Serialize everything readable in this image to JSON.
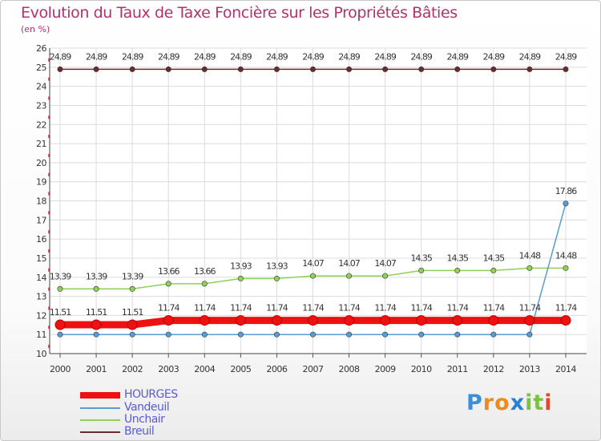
{
  "title": "Evolution du Taux de Taxe Foncière sur les Propriétés Bâties",
  "subtitle": "(en %)",
  "chart_data": {
    "type": "line",
    "title": "Evolution du Taux de Taxe Foncière sur les Propriétés Bâties",
    "ylabel": "(en %)",
    "xlabel": "",
    "ylim": [
      10,
      26
    ],
    "yticks": [
      "10",
      "11",
      "12",
      "13",
      "14",
      "15",
      "16",
      "17",
      "18",
      "19",
      "20",
      "21",
      "22",
      "23",
      "24",
      "25",
      "26"
    ],
    "categories": [
      "2000",
      "2001",
      "2002",
      "2003",
      "2004",
      "2005",
      "2006",
      "2007",
      "2008",
      "2009",
      "2010",
      "2011",
      "2012",
      "2013",
      "2014"
    ],
    "series": [
      {
        "name": "Breuil",
        "color": "#6b2a2e",
        "values": [
          24.89,
          24.89,
          24.89,
          24.89,
          24.89,
          24.89,
          24.89,
          24.89,
          24.89,
          24.89,
          24.89,
          24.89,
          24.89,
          24.89,
          24.89
        ],
        "labels": [
          "24.89",
          "24.89",
          "24.89",
          "24.89",
          "24.89",
          "24.89",
          "24.89",
          "24.89",
          "24.89",
          "24.89",
          "24.89",
          "24.89",
          "24.89",
          "24.89",
          "24.89"
        ]
      },
      {
        "name": "Unchair",
        "color": "#8fd058",
        "values": [
          13.39,
          13.39,
          13.39,
          13.66,
          13.66,
          13.93,
          13.93,
          14.07,
          14.07,
          14.07,
          14.35,
          14.35,
          14.35,
          14.48,
          14.48
        ],
        "labels": [
          "13.39",
          "13.39",
          "13.39",
          "13.66",
          "13.66",
          "13.93",
          "13.93",
          "14.07",
          "14.07",
          "14.07",
          "14.35",
          "14.35",
          "14.35",
          "14.48",
          "14.48"
        ]
      },
      {
        "name": "Vandeuil",
        "color": "#5b9bd0",
        "values": [
          11,
          11,
          11,
          11,
          11,
          11,
          11,
          11,
          11,
          11,
          11,
          11,
          11,
          11,
          17.86
        ],
        "labels": [
          "",
          "",
          "",
          "",
          "",
          "",
          "",
          "",
          "",
          "",
          "",
          "",
          "",
          "",
          "17.86"
        ]
      },
      {
        "name": "HOURGES",
        "color": "#ee1111",
        "values": [
          11.51,
          11.51,
          11.51,
          11.74,
          11.74,
          11.74,
          11.74,
          11.74,
          11.74,
          11.74,
          11.74,
          11.74,
          11.74,
          11.74,
          11.74
        ],
        "labels": [
          "11.51",
          "11.51",
          "11.51",
          "11.74",
          "11.74",
          "11.74",
          "11.74",
          "11.74",
          "11.74",
          "11.74",
          "11.74",
          "11.74",
          "11.74",
          "11.74",
          "11.74"
        ]
      }
    ]
  },
  "legend": [
    {
      "name": "HOURGES",
      "color": "#ee1111"
    },
    {
      "name": "Vandeuil",
      "color": "#5b9bd0"
    },
    {
      "name": "Unchair",
      "color": "#8fd058"
    },
    {
      "name": "Breuil",
      "color": "#6b2a2e"
    }
  ],
  "logo": {
    "letters": [
      "P",
      "r",
      "o",
      "x",
      "i",
      "t",
      "i"
    ],
    "colors": [
      "#3b8fd9",
      "#f08a1c",
      "#f08a1c",
      "#2a7fd4",
      "#7cc142",
      "#7cc142",
      "#e7452b"
    ]
  }
}
